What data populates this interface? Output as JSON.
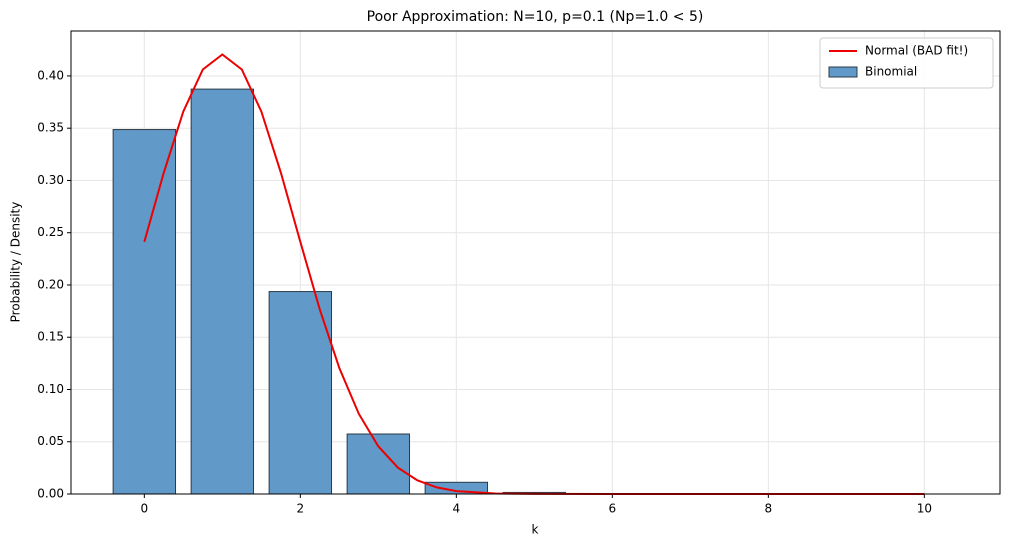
{
  "chart_data": {
    "type": "bar",
    "title": "Poor Approximation: N=10, p=0.1 (Np=1.0 < 5)",
    "xlabel": "k",
    "ylabel": "Probability / Density",
    "xlim": [
      -0.94,
      10.97
    ],
    "ylim": [
      0,
      0.443
    ],
    "xticks": [
      0,
      2,
      4,
      6,
      8,
      10
    ],
    "yticks": [
      {
        "value": 0,
        "label": "0.00"
      },
      {
        "value": 0.05,
        "label": "0.05"
      },
      {
        "value": 0.1,
        "label": "0.10"
      },
      {
        "value": 0.15,
        "label": "0.15"
      },
      {
        "value": 0.2,
        "label": "0.20"
      },
      {
        "value": 0.25,
        "label": "0.25"
      },
      {
        "value": 0.3,
        "label": "0.30"
      },
      {
        "value": 0.35,
        "label": "0.35"
      },
      {
        "value": 0.4,
        "label": "0.40"
      }
    ],
    "grid": true,
    "legend": "upper right",
    "series": [
      {
        "name": "Normal (BAD fit!)",
        "type": "line",
        "color": "#ee0000",
        "x": [
          0,
          0.25,
          0.5,
          0.75,
          1,
          1.25,
          1.5,
          1.75,
          2,
          2.25,
          2.5,
          2.75,
          3,
          3.25,
          3.5,
          3.75,
          4,
          4.5,
          5,
          6,
          8,
          10
        ],
        "values": [
          0.2413,
          0.3076,
          0.366,
          0.4062,
          0.4205,
          0.4062,
          0.366,
          0.3076,
          0.2413,
          0.1765,
          0.1205,
          0.0767,
          0.0456,
          0.0253,
          0.0131,
          0.0063,
          0.0028,
          0.0005,
          0.0001,
          0,
          0,
          0
        ]
      },
      {
        "name": "Binomial",
        "type": "bar",
        "color": "#6199c8",
        "edgecolor": "#2a3a48",
        "x": [
          0,
          1,
          2,
          3,
          4,
          5,
          6,
          7,
          8,
          9,
          10
        ],
        "values": [
          0.3487,
          0.3874,
          0.1937,
          0.0574,
          0.0112,
          0.0015,
          0.0001,
          0,
          0,
          0,
          0
        ]
      }
    ]
  }
}
